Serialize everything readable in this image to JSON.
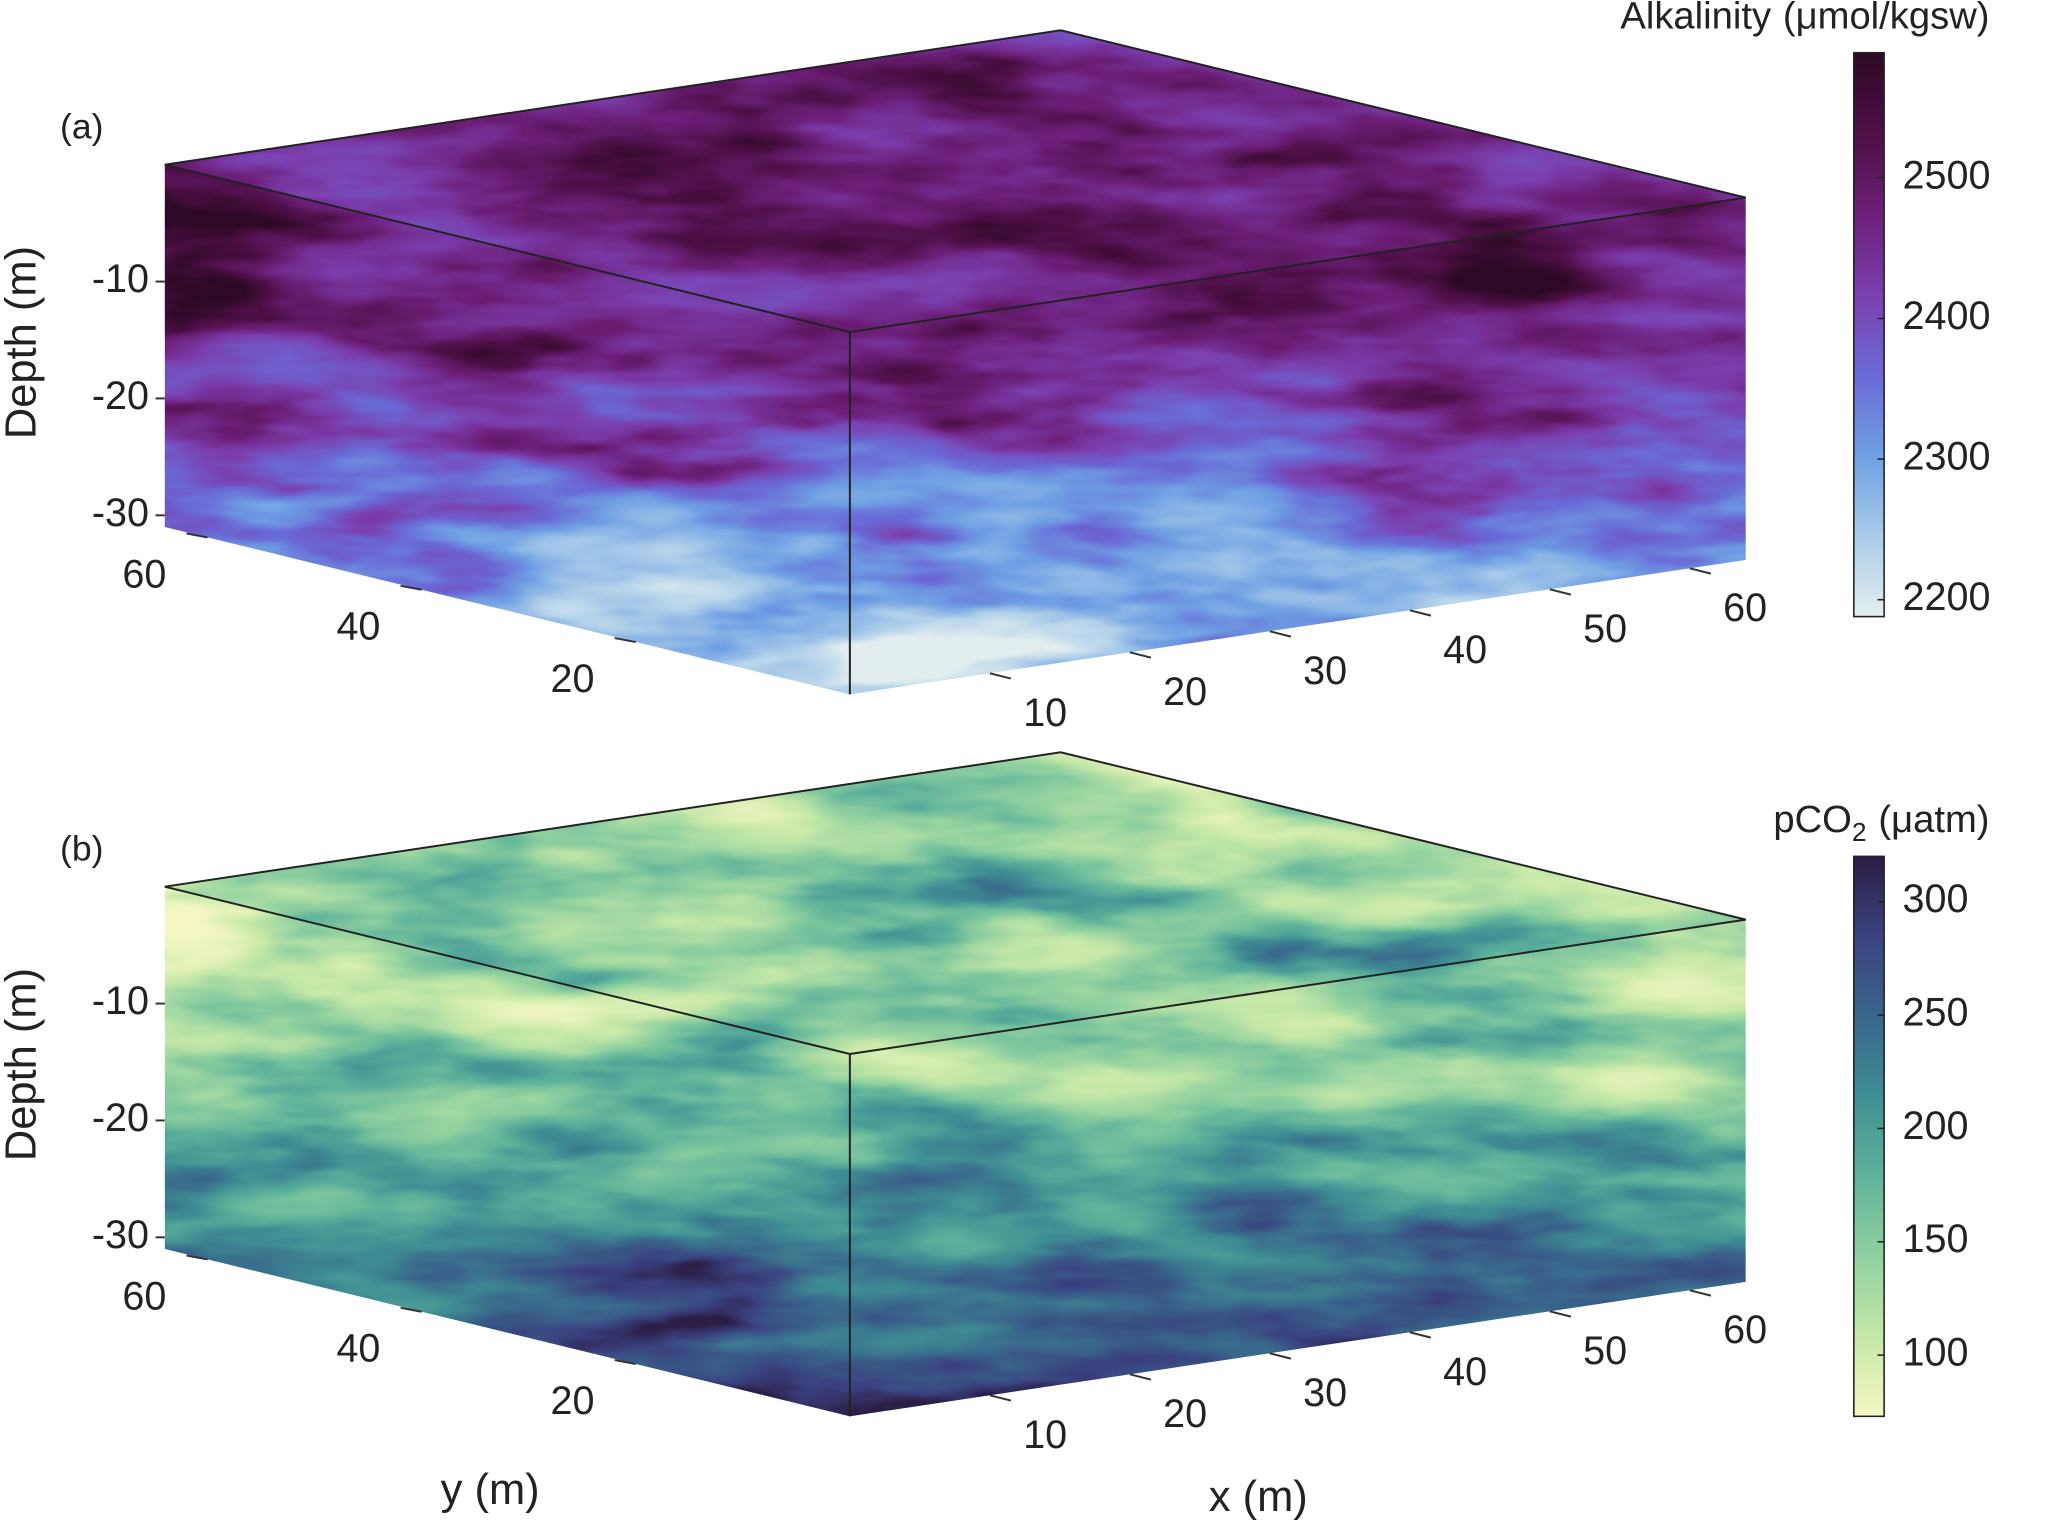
{
  "chart_data": [
    {
      "type": "volume",
      "panel_label": "(a)",
      "zlabel": "Depth (m)",
      "zlim": [
        -31,
        0
      ],
      "zticks": [
        -10,
        -20,
        -30
      ],
      "xlim": [
        0,
        64
      ],
      "xticks": [
        10,
        20,
        30,
        40,
        50,
        60
      ],
      "ylim": [
        0,
        64
      ],
      "yticks": [
        20,
        40,
        60
      ],
      "colorbar": {
        "title": {
          "main": "Alkalinity",
          "unit": "(μmol/kgsw)"
        },
        "clim": [
          2188,
          2589
        ],
        "ticks": [
          2200,
          2300,
          2400,
          2500
        ],
        "colormap": [
          "#e3efef",
          "#a9cbe9",
          "#6fa0e4",
          "#6a6ad6",
          "#7b3fae",
          "#6c1f78",
          "#4d0f45",
          "#2e0a27"
        ]
      }
    },
    {
      "type": "volume",
      "panel_label": "(b)",
      "zlabel": "Depth (m)",
      "xlabel": "x (m)",
      "ylabel": "y (m)",
      "zlim": [
        -31,
        0
      ],
      "zticks": [
        -10,
        -20,
        -30
      ],
      "xlim": [
        0,
        64
      ],
      "xticks": [
        10,
        20,
        30,
        40,
        50,
        60
      ],
      "ylim": [
        0,
        64
      ],
      "yticks": [
        20,
        40,
        60
      ],
      "colorbar": {
        "title": {
          "main": "pCO",
          "sub": "2",
          "unit": "(μatm)"
        },
        "clim": [
          73,
          320
        ],
        "ticks": [
          100,
          150,
          200,
          250,
          300
        ],
        "colormap": [
          "#f4f7c4",
          "#c5e8a8",
          "#8fd0a0",
          "#5fb39b",
          "#3f8e94",
          "#39658b",
          "#3a4280",
          "#2c1d45"
        ]
      }
    }
  ]
}
